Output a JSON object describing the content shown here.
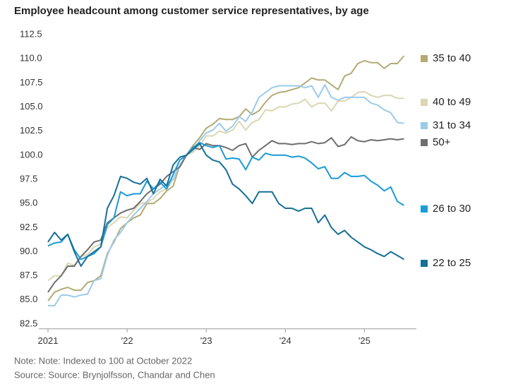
{
  "chart_data": {
    "type": "line",
    "title": "Employee headcount among customer service representatives, by age",
    "note": "Note: Note: Indexed to 100 at October 2022",
    "source": "Source: Source: Brynjolfsson, Chandar and Chen",
    "x": [
      2021,
      2021.083,
      2021.167,
      2021.25,
      2021.333,
      2021.417,
      2021.5,
      2021.583,
      2021.667,
      2021.75,
      2021.833,
      2021.917,
      2022,
      2022.083,
      2022.167,
      2022.25,
      2022.333,
      2022.417,
      2022.5,
      2022.583,
      2022.667,
      2022.75,
      2022.833,
      2022.917,
      2023,
      2023.083,
      2023.167,
      2023.25,
      2023.333,
      2023.417,
      2023.5,
      2023.583,
      2023.667,
      2023.75,
      2023.833,
      2023.917,
      2024,
      2024.083,
      2024.167,
      2024.25,
      2024.333,
      2024.417,
      2024.5,
      2024.583,
      2024.667,
      2024.75,
      2024.833,
      2024.917,
      2025,
      2025.083,
      2025.167,
      2025.25,
      2025.333,
      2025.417,
      2025.5
    ],
    "xlim": [
      2021,
      2025.55
    ],
    "xticks": [
      {
        "value": 2021,
        "label": "2021"
      },
      {
        "value": 2022,
        "label": "'22"
      },
      {
        "value": 2023,
        "label": "'23"
      },
      {
        "value": 2024,
        "label": "'24"
      },
      {
        "value": 2025,
        "label": "'25"
      }
    ],
    "ylim": [
      82,
      113
    ],
    "yticks": [
      82.5,
      {
        "value": 85,
        "label": "85.0"
      },
      87.5,
      {
        "value": 90,
        "label": "90.0"
      },
      92.5,
      {
        "value": 95,
        "label": "95.0"
      },
      97.5,
      {
        "value": 100,
        "label": "100.0"
      },
      102.5,
      {
        "value": 105,
        "label": "105.0"
      },
      107.5,
      {
        "value": 110,
        "label": "110.0"
      },
      112.5
    ],
    "grid": false,
    "series": [
      {
        "name": "35 to 40",
        "color": "#b3aa74",
        "values": [
          84.9,
          85.8,
          86.1,
          86.3,
          86.0,
          86.0,
          86.8,
          87.0,
          87.5,
          89.8,
          91.0,
          92.4,
          93.0,
          93.5,
          93.8,
          95.0,
          95.0,
          95.5,
          96.3,
          96.8,
          99.0,
          100.0,
          101.0,
          101.8,
          102.8,
          103.2,
          103.8,
          103.7,
          103.7,
          104.0,
          104.8,
          104.2,
          104.6,
          105.5,
          106.2,
          106.5,
          106.6,
          106.8,
          107.0,
          107.5,
          108.0,
          107.8,
          107.8,
          107.3,
          106.8,
          108.2,
          108.5,
          109.5,
          109.8,
          109.6,
          109.6,
          109.0,
          109.5,
          109.5,
          110.3
        ]
      },
      {
        "name": "40 to 49",
        "color": "#dbd6b3",
        "values": [
          87.0,
          87.5,
          87.5,
          88.8,
          88.6,
          89.5,
          89.7,
          90.5,
          90.8,
          92.5,
          93.0,
          93.6,
          93.5,
          94.3,
          95.0,
          95.1,
          95.5,
          96.2,
          96.5,
          97.5,
          99.0,
          100.0,
          100.3,
          101.0,
          102.0,
          102.0,
          102.5,
          102.3,
          102.6,
          103.5,
          102.6,
          103.4,
          103.7,
          104.7,
          104.6,
          105.0,
          105.0,
          105.3,
          105.4,
          105.8,
          105.0,
          105.4,
          105.4,
          104.6,
          105.6,
          105.6,
          106.0,
          106.5,
          106.6,
          106.2,
          106.0,
          106.2,
          106.2,
          105.9,
          105.9
        ]
      },
      {
        "name": "31 to 34",
        "color": "#9ccbea",
        "values": [
          84.4,
          84.4,
          85.5,
          85.5,
          85.3,
          85.5,
          85.6,
          87.0,
          87.2,
          89.6,
          91.2,
          92.0,
          93.0,
          93.8,
          94.5,
          95.2,
          96.0,
          96.5,
          97.0,
          97.5,
          99.0,
          100.0,
          100.5,
          101.5,
          102.3,
          102.6,
          103.3,
          102.5,
          103.0,
          104.0,
          103.5,
          104.5,
          106.0,
          106.5,
          107.0,
          107.2,
          107.2,
          107.2,
          107.2,
          107.0,
          107.2,
          106.0,
          107.3,
          106.0,
          105.7,
          106.0,
          106.0,
          106.0,
          106.0,
          105.4,
          105.2,
          104.7,
          104.4,
          103.4,
          103.3
        ]
      },
      {
        "name": "50+",
        "color": "#6e6e6e",
        "values": [
          85.8,
          86.8,
          87.5,
          88.5,
          88.5,
          89.5,
          90.2,
          91.0,
          91.2,
          93.0,
          93.5,
          94.0,
          94.3,
          94.5,
          95.2,
          96.0,
          96.5,
          97.0,
          97.8,
          98.3,
          98.8,
          100.0,
          100.8,
          100.6,
          101.2,
          101.0,
          101.0,
          100.8,
          100.5,
          101.0,
          101.2,
          99.8,
          100.5,
          101.0,
          101.5,
          101.2,
          101.2,
          101.1,
          101.2,
          101.2,
          101.4,
          101.2,
          101.3,
          101.8,
          100.9,
          101.1,
          101.9,
          101.5,
          101.4,
          101.6,
          101.5,
          101.6,
          101.7,
          101.6,
          101.7
        ]
      },
      {
        "name": "26 to 30",
        "color": "#1a9bd7",
        "values": [
          90.6,
          90.9,
          91.0,
          91.8,
          90.2,
          89.2,
          89.5,
          89.8,
          90.5,
          92.8,
          93.5,
          96.2,
          95.8,
          96.0,
          96.0,
          97.3,
          96.5,
          97.2,
          96.5,
          98.0,
          99.5,
          100.0,
          100.8,
          101.3,
          101.0,
          100.8,
          101.0,
          99.6,
          99.7,
          99.6,
          98.5,
          99.8,
          99.5,
          100.2,
          100.0,
          100.0,
          100.0,
          99.8,
          99.9,
          99.7,
          99.2,
          98.6,
          98.8,
          97.6,
          97.6,
          98.2,
          97.8,
          97.8,
          97.9,
          97.3,
          96.9,
          96.3,
          96.7,
          95.2,
          94.8
        ]
      },
      {
        "name": "22 to 25",
        "color": "#156f96",
        "values": [
          91.0,
          92.0,
          91.2,
          91.8,
          90.0,
          88.5,
          89.5,
          90.0,
          90.5,
          94.5,
          95.8,
          97.8,
          97.6,
          97.2,
          97.0,
          97.6,
          96.0,
          97.5,
          96.8,
          99.0,
          99.8,
          100.0,
          100.6,
          101.2,
          100.0,
          99.5,
          99.3,
          98.5,
          97.0,
          96.5,
          95.8,
          95.0,
          96.2,
          96.2,
          96.2,
          95.0,
          94.5,
          94.5,
          94.2,
          94.5,
          94.5,
          93.0,
          93.8,
          92.5,
          91.8,
          92.2,
          91.5,
          91.0,
          90.5,
          90.2,
          89.8,
          89.5,
          90.0,
          89.6,
          89.2
        ]
      }
    ]
  }
}
